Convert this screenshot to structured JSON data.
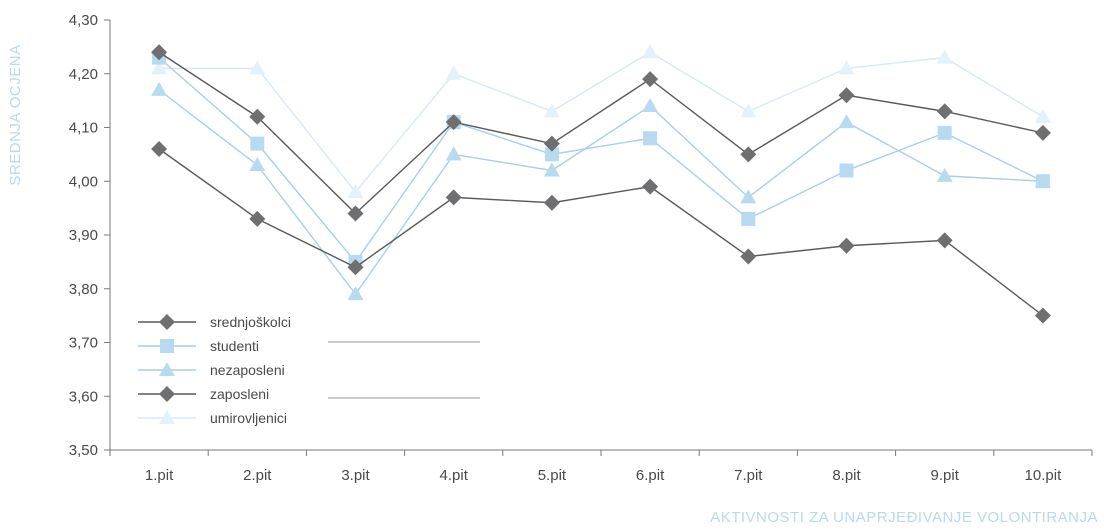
{
  "chart_data": {
    "type": "line",
    "xlabel": "AKTIVNOSTI ZA UNAPRJEĐIVANJE VOLONTIRANJA",
    "ylabel": "SREDNJA OCJENA",
    "categories": [
      "1.pit",
      "2.pit",
      "3.pit",
      "4.pit",
      "5.pit",
      "6.pit",
      "7.pit",
      "8.pit",
      "9.pit",
      "10.pit"
    ],
    "ylim": [
      3.5,
      4.3
    ],
    "yticks": [
      "3,50",
      "3,60",
      "3,70",
      "3,80",
      "3,90",
      "4,00",
      "4,10",
      "4,20",
      "4,30"
    ],
    "grid": false,
    "legend_position": "bottom-left",
    "axis_title_color": "#b9d9ee",
    "series": [
      {
        "name": "srednjoškolci",
        "marker": "diamond",
        "color": "#6f6f72",
        "line_color": "#5a5a5c",
        "values": [
          4.24,
          4.12,
          3.94,
          4.11,
          4.07,
          4.19,
          4.05,
          4.16,
          4.13,
          4.09
        ]
      },
      {
        "name": "studenti",
        "marker": "square",
        "color": "#b8daf0",
        "line_color": "#a8cfe8",
        "values": [
          4.23,
          4.07,
          3.85,
          4.11,
          4.05,
          4.08,
          3.93,
          4.02,
          4.09,
          4.0
        ]
      },
      {
        "name": "nezaposleni",
        "marker": "triangle",
        "color": "#b8daf0",
        "line_color": "#a8cfe8",
        "values": [
          4.17,
          4.03,
          3.79,
          4.05,
          4.02,
          4.14,
          3.97,
          4.11,
          4.01,
          4.0
        ]
      },
      {
        "name": "zaposleni",
        "marker": "diamond",
        "color": "#6f6f72",
        "line_color": "#5a5a5c",
        "values": [
          4.06,
          3.93,
          3.84,
          3.97,
          3.96,
          3.99,
          3.86,
          3.88,
          3.89,
          3.75
        ]
      },
      {
        "name": "umirovljenici",
        "marker": "triangle",
        "color": "#e3f1fa",
        "line_color": "#d6eaf6",
        "values": [
          4.21,
          4.21,
          3.98,
          4.2,
          4.13,
          4.24,
          4.13,
          4.21,
          4.23,
          4.12
        ]
      }
    ]
  }
}
